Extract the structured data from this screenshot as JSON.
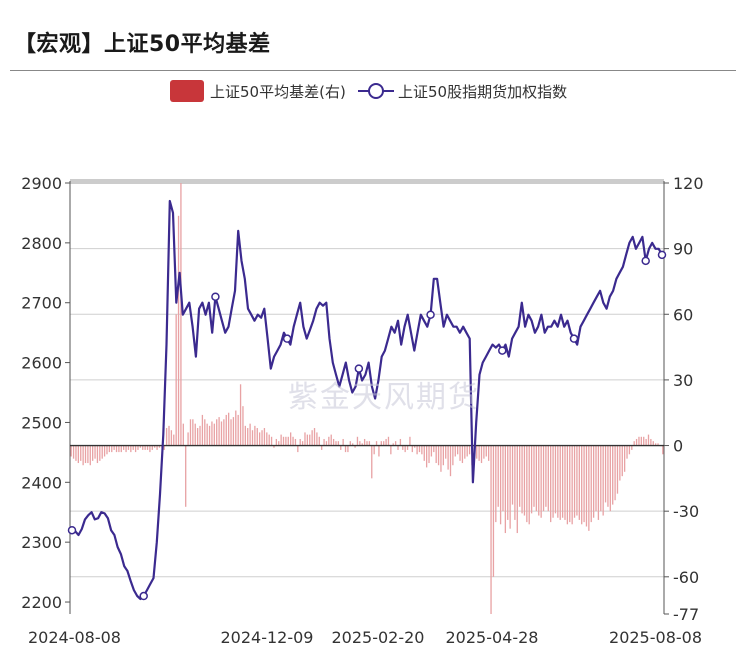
{
  "title": "【宏观】上证50平均基差",
  "watermark": "紫金天风期货",
  "colors": {
    "basis_bar": "#e8a2a4",
    "basis_legend": "#c8363a",
    "index_line": "#3b2a8f",
    "grid": "#cfcfcf",
    "zero_line": "#333333"
  },
  "legend": {
    "basis": "上证50平均基差(右)",
    "index": "上证50股指期货加权指数"
  },
  "chart_data": {
    "type": "bar+line",
    "left_axis": {
      "min": 2180,
      "max": 2900,
      "ticks": [
        2200,
        2300,
        2400,
        2500,
        2600,
        2700,
        2800,
        2900
      ]
    },
    "right_axis": {
      "min": -77,
      "max": 120,
      "ticks": [
        120,
        90,
        60,
        30,
        0,
        -30,
        -60,
        -77
      ]
    },
    "x_labels": [
      "2024-08-08",
      "2024-12-09",
      "2025-02-20",
      "2025-04-28",
      "2025-08-08"
    ],
    "series": [
      {
        "name": "上证50平均基差(右)",
        "kind": "bar",
        "axis": "right",
        "values": [
          -5,
          -6,
          -7,
          -8,
          -7,
          -9,
          -8,
          -8,
          -9,
          -7,
          -6,
          -8,
          -7,
          -6,
          -5,
          -4,
          -3,
          -3,
          -2,
          -3,
          -3,
          -3,
          -2,
          -3,
          -2,
          -3,
          -2,
          -3,
          -2,
          -1,
          -2,
          -2,
          -2,
          -3,
          -2,
          -1,
          -2,
          -1,
          -1,
          -2,
          8,
          9,
          7,
          5,
          60,
          105,
          120,
          10,
          -28,
          6,
          12,
          12,
          10,
          8,
          9,
          14,
          12,
          10,
          9,
          11,
          10,
          12,
          13,
          11,
          12,
          14,
          15,
          12,
          13,
          16,
          14,
          28,
          18,
          9,
          8,
          10,
          7,
          9,
          8,
          6,
          7,
          8,
          6,
          5,
          4,
          -1,
          3,
          2,
          5,
          4,
          4,
          4,
          6,
          4,
          3,
          -3,
          3,
          2,
          6,
          5,
          5,
          7,
          8,
          6,
          4,
          -2,
          3,
          2,
          4,
          5,
          3,
          2,
          2,
          -2,
          3,
          -3,
          -3,
          2,
          1,
          -1,
          4,
          2,
          1,
          3,
          2,
          2,
          -15,
          -4,
          2,
          -5,
          2,
          2,
          3,
          4,
          -4,
          1,
          2,
          -2,
          3,
          -2,
          -3,
          -2,
          4,
          -3,
          -1,
          -4,
          -3,
          -4,
          -7,
          -10,
          -8,
          -5,
          -3,
          -8,
          -9,
          -12,
          -9,
          -6,
          -11,
          -14,
          -9,
          -5,
          -4,
          -7,
          -8,
          -6,
          -5,
          -4,
          -9,
          -4,
          -6,
          -7,
          -8,
          -6,
          -5,
          -7,
          -77,
          -60,
          -35,
          -28,
          -36,
          -30,
          -40,
          -34,
          -38,
          -27,
          -34,
          -40,
          -28,
          -31,
          -32,
          -35,
          -36,
          -31,
          -28,
          -30,
          -32,
          -33,
          -30,
          -28,
          -30,
          -35,
          -33,
          -31,
          -33,
          -34,
          -33,
          -34,
          -36,
          -35,
          -36,
          -33,
          -32,
          -34,
          -36,
          -35,
          -37,
          -39,
          -35,
          -33,
          -30,
          -34,
          -30,
          -32,
          -26,
          -28,
          -30,
          -27,
          -25,
          -22,
          -16,
          -14,
          -12,
          -6,
          -4,
          -2,
          2,
          3,
          4,
          4,
          4,
          3,
          5,
          3,
          2,
          1,
          1,
          0,
          -4
        ]
      },
      {
        "name": "上证50股指期货加权指数",
        "kind": "line",
        "axis": "left",
        "values": [
          2320,
          2318,
          2312,
          2322,
          2338,
          2345,
          2350,
          2338,
          2340,
          2350,
          2348,
          2340,
          2320,
          2312,
          2292,
          2280,
          2260,
          2252,
          2235,
          2220,
          2210,
          2205,
          2210,
          2220,
          2230,
          2240,
          2300,
          2380,
          2480,
          2630,
          2870,
          2850,
          2700,
          2750,
          2680,
          2690,
          2700,
          2660,
          2610,
          2690,
          2700,
          2680,
          2700,
          2650,
          2710,
          2690,
          2670,
          2650,
          2660,
          2690,
          2720,
          2820,
          2770,
          2740,
          2690,
          2680,
          2670,
          2680,
          2675,
          2690,
          2640,
          2590,
          2610,
          2620,
          2630,
          2650,
          2640,
          2630,
          2660,
          2680,
          2700,
          2660,
          2640,
          2655,
          2670,
          2690,
          2700,
          2695,
          2700,
          2640,
          2600,
          2580,
          2560,
          2580,
          2600,
          2570,
          2550,
          2560,
          2590,
          2570,
          2580,
          2600,
          2560,
          2540,
          2570,
          2610,
          2620,
          2640,
          2660,
          2650,
          2670,
          2630,
          2660,
          2680,
          2650,
          2620,
          2650,
          2680,
          2670,
          2660,
          2680,
          2740,
          2740,
          2700,
          2660,
          2680,
          2670,
          2660,
          2660,
          2650,
          2660,
          2650,
          2640,
          2400,
          2500,
          2580,
          2600,
          2610,
          2620,
          2630,
          2625,
          2630,
          2620,
          2630,
          2610,
          2640,
          2650,
          2660,
          2700,
          2660,
          2680,
          2670,
          2650,
          2660,
          2680,
          2650,
          2660,
          2660,
          2670,
          2660,
          2680,
          2660,
          2670,
          2650,
          2640,
          2630,
          2660,
          2670,
          2680,
          2690,
          2700,
          2710,
          2720,
          2700,
          2690,
          2710,
          2720,
          2740,
          2750,
          2760,
          2780,
          2800,
          2810,
          2790,
          2800,
          2810,
          2770,
          2790,
          2800,
          2790,
          2790,
          2780
        ]
      }
    ]
  }
}
